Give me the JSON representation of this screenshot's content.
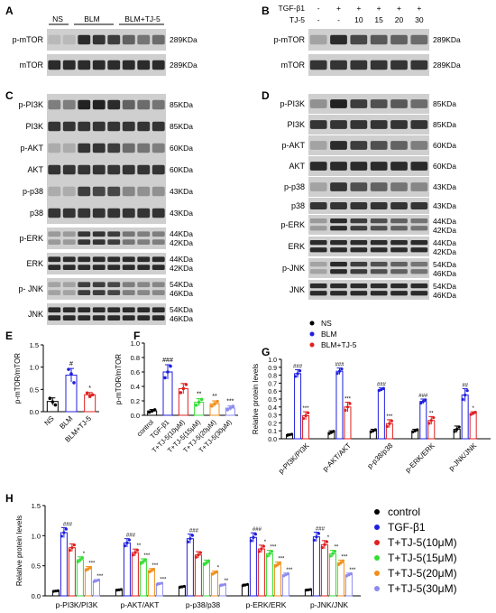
{
  "panels": {
    "A": {
      "letter": "A",
      "headers": [
        "NS",
        "BLM",
        "BLM+TJ-5"
      ],
      "rows": [
        {
          "label": "p-mTOR",
          "kda": [
            "289KDa"
          ],
          "intensity": [
            0.08,
            0.08,
            0.85,
            0.8,
            0.75,
            0.55,
            0.45,
            0.5
          ]
        },
        {
          "label": "mTOR",
          "kda": [
            "289KDa"
          ],
          "intensity": [
            0.85,
            0.85,
            0.85,
            0.85,
            0.85,
            0.85,
            0.85,
            0.85
          ]
        }
      ]
    },
    "B": {
      "letter": "B",
      "row1_label": "TGF-β1",
      "row1_values": [
        "-",
        "+",
        "+",
        "+",
        "+",
        "+"
      ],
      "row2_label": "TJ-5",
      "row2_values": [
        "-",
        "-",
        "10",
        "15",
        "20",
        "30"
      ],
      "rows": [
        {
          "label": "p-mTOR",
          "kda": [
            "289KDa"
          ],
          "intensity": [
            0.2,
            0.85,
            0.7,
            0.6,
            0.55,
            0.5
          ]
        },
        {
          "label": "mTOR",
          "kda": [
            "289KDa"
          ],
          "intensity": [
            0.8,
            0.8,
            0.8,
            0.8,
            0.8,
            0.8
          ]
        }
      ]
    },
    "C": {
      "letter": "C",
      "rows": [
        {
          "label": "p-PI3K",
          "kda": [
            "85KDa"
          ],
          "intensity": [
            0.4,
            0.4,
            0.9,
            0.9,
            0.85,
            0.55,
            0.5,
            0.45
          ]
        },
        {
          "label": "PI3K",
          "kda": [
            "85KDa"
          ],
          "intensity": [
            0.8,
            0.8,
            0.8,
            0.8,
            0.8,
            0.8,
            0.8,
            0.8
          ]
        },
        {
          "label": "p-AKT",
          "kda": [
            "60KDa"
          ],
          "intensity": [
            0.15,
            0.15,
            0.8,
            0.8,
            0.75,
            0.5,
            0.45,
            0.4
          ]
        },
        {
          "label": "AKT",
          "kda": [
            "60KDa"
          ],
          "intensity": [
            0.8,
            0.8,
            0.8,
            0.8,
            0.8,
            0.8,
            0.8,
            0.8
          ]
        },
        {
          "label": "p-p38",
          "kda": [
            "43KDa"
          ],
          "intensity": [
            0.15,
            0.15,
            0.75,
            0.7,
            0.7,
            0.35,
            0.3,
            0.3
          ]
        },
        {
          "label": "p38",
          "kda": [
            "43KDa"
          ],
          "intensity": [
            0.8,
            0.8,
            0.8,
            0.8,
            0.8,
            0.8,
            0.8,
            0.8
          ]
        },
        {
          "label": "p-ERK",
          "kda": [
            "44KDa",
            "42KDa"
          ],
          "intensity": [
            0.25,
            0.25,
            0.8,
            0.8,
            0.75,
            0.45,
            0.4,
            0.4
          ]
        },
        {
          "label": "ERK",
          "kda": [
            "44KDa",
            "42KDa"
          ],
          "intensity": [
            0.85,
            0.85,
            0.85,
            0.85,
            0.85,
            0.85,
            0.85,
            0.85
          ]
        },
        {
          "label": "p- JNK",
          "kda": [
            "54KDa",
            "46KDa"
          ],
          "intensity": [
            0.2,
            0.2,
            0.75,
            0.75,
            0.7,
            0.4,
            0.35,
            0.35
          ]
        },
        {
          "label": "JNK",
          "kda": [
            "54KDa",
            "46KDa"
          ],
          "intensity": [
            0.85,
            0.85,
            0.85,
            0.85,
            0.85,
            0.85,
            0.85,
            0.85
          ]
        }
      ]
    },
    "D": {
      "letter": "D",
      "rows": [
        {
          "label": "p-PI3K",
          "kda": [
            "85KDa"
          ],
          "intensity": [
            0.3,
            0.9,
            0.75,
            0.65,
            0.6,
            0.5
          ]
        },
        {
          "label": "PI3K",
          "kda": [
            "85KDa"
          ],
          "intensity": [
            0.8,
            0.8,
            0.8,
            0.8,
            0.8,
            0.8
          ]
        },
        {
          "label": "p-AKT",
          "kda": [
            "60KDa"
          ],
          "intensity": [
            0.2,
            0.85,
            0.75,
            0.65,
            0.55,
            0.4
          ]
        },
        {
          "label": "AKT",
          "kda": [
            "60KDa"
          ],
          "intensity": [
            0.85,
            0.85,
            0.85,
            0.85,
            0.85,
            0.85
          ]
        },
        {
          "label": "p-p38",
          "kda": [
            "43KDa"
          ],
          "intensity": [
            0.2,
            0.8,
            0.65,
            0.55,
            0.45,
            0.35
          ]
        },
        {
          "label": "p38",
          "kda": [
            "43KDa"
          ],
          "intensity": [
            0.8,
            0.8,
            0.8,
            0.8,
            0.8,
            0.8
          ]
        },
        {
          "label": "p-ERK",
          "kda": [
            "44KDa",
            "42KDa"
          ],
          "intensity": [
            0.25,
            0.85,
            0.75,
            0.65,
            0.55,
            0.45
          ]
        },
        {
          "label": "ERK",
          "kda": [
            "44KDa",
            "42KDa"
          ],
          "intensity": [
            0.85,
            0.85,
            0.85,
            0.85,
            0.85,
            0.85
          ]
        },
        {
          "label": "p-JNK",
          "kda": [
            "54KDa",
            "46KDa"
          ],
          "intensity": [
            0.2,
            0.85,
            0.75,
            0.65,
            0.55,
            0.45
          ]
        },
        {
          "label": "JNK",
          "kda": [
            "54KDa",
            "46KDa"
          ],
          "intensity": [
            0.85,
            0.85,
            0.85,
            0.85,
            0.85,
            0.85
          ]
        }
      ]
    }
  },
  "legend_G": [
    {
      "name": "NS",
      "color": "#000000"
    },
    {
      "name": "BLM",
      "color": "#1f1fdf"
    },
    {
      "name": "BLM+TJ-5",
      "color": "#e02020"
    }
  ],
  "legend_H": [
    {
      "name": "control",
      "color": "#000000"
    },
    {
      "name": "TGF-β1",
      "color": "#1f1fdf"
    },
    {
      "name": "T+TJ-5(10μM)",
      "color": "#e02020"
    },
    {
      "name": "T+TJ-5(15μM)",
      "color": "#33dd33"
    },
    {
      "name": "T+TJ-5(20μM)",
      "color": "#f0901c"
    },
    {
      "name": "T+TJ-5(30μM)",
      "color": "#8c8cf0"
    }
  ],
  "chart_data": [
    {
      "panel": "E",
      "type": "bar",
      "ylabel": "p-mTOR/mTOR",
      "categories": [
        "NS",
        "BLM",
        "BLM+TJ-5"
      ],
      "values": [
        0.23,
        0.82,
        0.38
      ],
      "errors": [
        0.08,
        0.15,
        0.05
      ],
      "points": [
        [
          0.3,
          0.22,
          0.15
        ],
        [
          0.95,
          0.85,
          0.65
        ],
        [
          0.42,
          0.34,
          0.38
        ]
      ],
      "sig": [
        "",
        "#",
        "*"
      ],
      "ylim": [
        0,
        1.5
      ],
      "yticks": [
        "0.0",
        "0.5",
        "1.0",
        "1.5"
      ],
      "colors": [
        "#000000",
        "#1f1fdf",
        "#e02020"
      ]
    },
    {
      "panel": "F",
      "type": "bar",
      "ylabel": "p-mTOR/mTOR",
      "categories": [
        "control",
        "TGF-β1",
        "T+TJ-5(10μM)",
        "T+TJ-5(15μM)",
        "T+TJ-5(20μM)",
        "T+TJ-5(30μM)"
      ],
      "values": [
        0.06,
        0.6,
        0.37,
        0.18,
        0.16,
        0.1
      ],
      "errors": [
        0.02,
        0.1,
        0.07,
        0.05,
        0.04,
        0.03
      ],
      "sig": [
        "",
        "###",
        "",
        "**",
        "**",
        "***"
      ],
      "ylim": [
        0,
        1.0
      ],
      "yticks": [
        "0.0",
        "0.2",
        "0.4",
        "0.6",
        "0.8",
        "1.0"
      ],
      "colors": [
        "#000000",
        "#1f1fdf",
        "#e02020",
        "#33dd33",
        "#f0901c",
        "#8c8cf0"
      ]
    },
    {
      "panel": "G",
      "type": "bar",
      "ylabel": "Relative protein levels",
      "categories": [
        "p-PI3K/PI3K",
        "p-AKT/AKT",
        "p-p38/p38",
        "p-ERK/ERK",
        "p-JNK/JNK"
      ],
      "series": [
        {
          "name": "NS",
          "values": [
            0.05,
            0.08,
            0.1,
            0.1,
            0.12
          ]
        },
        {
          "name": "BLM",
          "values": [
            0.82,
            0.85,
            0.62,
            0.47,
            0.55
          ]
        },
        {
          "name": "BLM+TJ-5",
          "values": [
            0.29,
            0.4,
            0.19,
            0.23,
            0.32
          ]
        }
      ],
      "errors": [
        [
          0.01,
          0.02,
          0.02,
          0.02,
          0.04
        ],
        [
          0.05,
          0.04,
          0.02,
          0.03,
          0.08
        ],
        [
          0.05,
          0.06,
          0.05,
          0.05,
          0.02
        ]
      ],
      "sig": [
        [
          "",
          "",
          "",
          "",
          ""
        ],
        [
          "###",
          "###",
          "###",
          "###",
          "##"
        ],
        [
          "***",
          "***",
          "***",
          "**",
          "*"
        ]
      ],
      "ylim": [
        0,
        1.0
      ],
      "yticks": [
        "0.0",
        "0.1",
        "0.2",
        "0.3",
        "0.4",
        "0.5",
        "0.6",
        "0.7",
        "0.8",
        "0.9",
        "1.0"
      ],
      "legend": "top-left"
    },
    {
      "panel": "H",
      "type": "bar",
      "ylabel": "Relative protein levels",
      "categories": [
        "p-PI3K/PI3K",
        "p-AKT/AKT",
        "p-p38/p38",
        "p-ERK/ERK",
        "p-JNK/JNK"
      ],
      "series": [
        {
          "name": "control",
          "values": [
            0.08,
            0.1,
            0.15,
            0.18,
            0.1
          ]
        },
        {
          "name": "TGF-β1",
          "values": [
            1.05,
            0.88,
            0.95,
            0.97,
            0.98
          ]
        },
        {
          "name": "T+TJ-5(10μM)",
          "values": [
            0.8,
            0.72,
            0.68,
            0.78,
            0.85
          ]
        },
        {
          "name": "T+TJ-5(15μM)",
          "values": [
            0.6,
            0.57,
            0.55,
            0.7,
            0.7
          ]
        },
        {
          "name": "T+TJ-5(20μM)",
          "values": [
            0.45,
            0.42,
            0.38,
            0.52,
            0.55
          ]
        },
        {
          "name": "T+TJ-5(30μM)",
          "values": [
            0.25,
            0.2,
            0.18,
            0.35,
            0.35
          ]
        }
      ],
      "sig": [
        [
          "",
          "",
          "",
          "",
          ""
        ],
        [
          "###",
          "###",
          "###",
          "###",
          "###"
        ],
        [
          "",
          "**",
          "",
          "*",
          "*"
        ],
        [
          "*",
          "***",
          "",
          "***",
          "**"
        ],
        [
          "***",
          "***",
          "*",
          "***",
          "***"
        ],
        [
          "***",
          "***",
          "**",
          "***",
          "***"
        ]
      ],
      "ylim": [
        0,
        1.5
      ],
      "yticks": [
        "0.0",
        "0.5",
        "1.0",
        "1.5"
      ],
      "legend": "right"
    }
  ]
}
